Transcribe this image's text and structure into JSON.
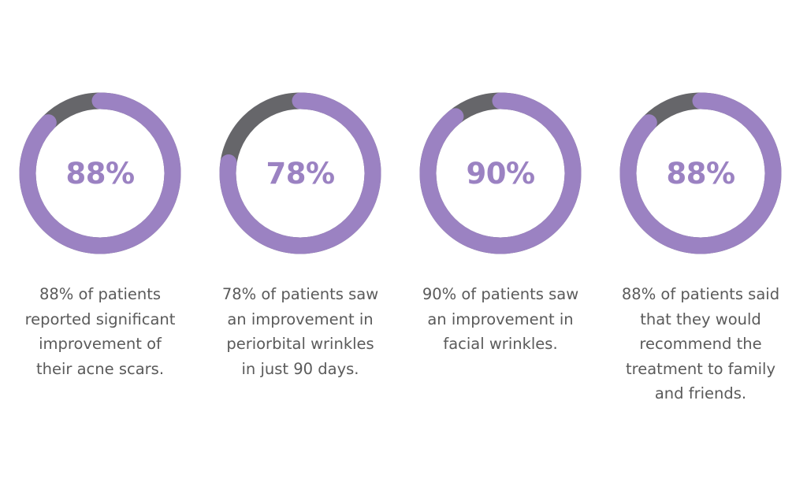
{
  "colors": {
    "accent": "#9b82c2",
    "remainder": "#66666a",
    "text": "#5a5a5a",
    "background": "#ffffff"
  },
  "chart_data": [
    {
      "type": "pie",
      "variant": "donut",
      "values": [
        88,
        12
      ],
      "center_label": "88%",
      "caption_lines": [
        "88% of patients",
        "reported significant",
        "improvement of",
        "their acne scars."
      ]
    },
    {
      "type": "pie",
      "variant": "donut",
      "values": [
        78,
        22
      ],
      "center_label": "78%",
      "caption_lines": [
        "78% of patients saw",
        "an improvement in",
        "periorbital wrinkles",
        "in just 90 days."
      ]
    },
    {
      "type": "pie",
      "variant": "donut",
      "values": [
        90,
        10
      ],
      "center_label": "90%",
      "caption_lines": [
        "90% of patients saw",
        "an improvement in",
        "facial wrinkles."
      ]
    },
    {
      "type": "pie",
      "variant": "donut",
      "values": [
        88,
        12
      ],
      "center_label": "88%",
      "caption_lines": [
        "88% of patients said",
        "that they would",
        "recommend the",
        "treatment to family",
        "and friends."
      ]
    }
  ]
}
